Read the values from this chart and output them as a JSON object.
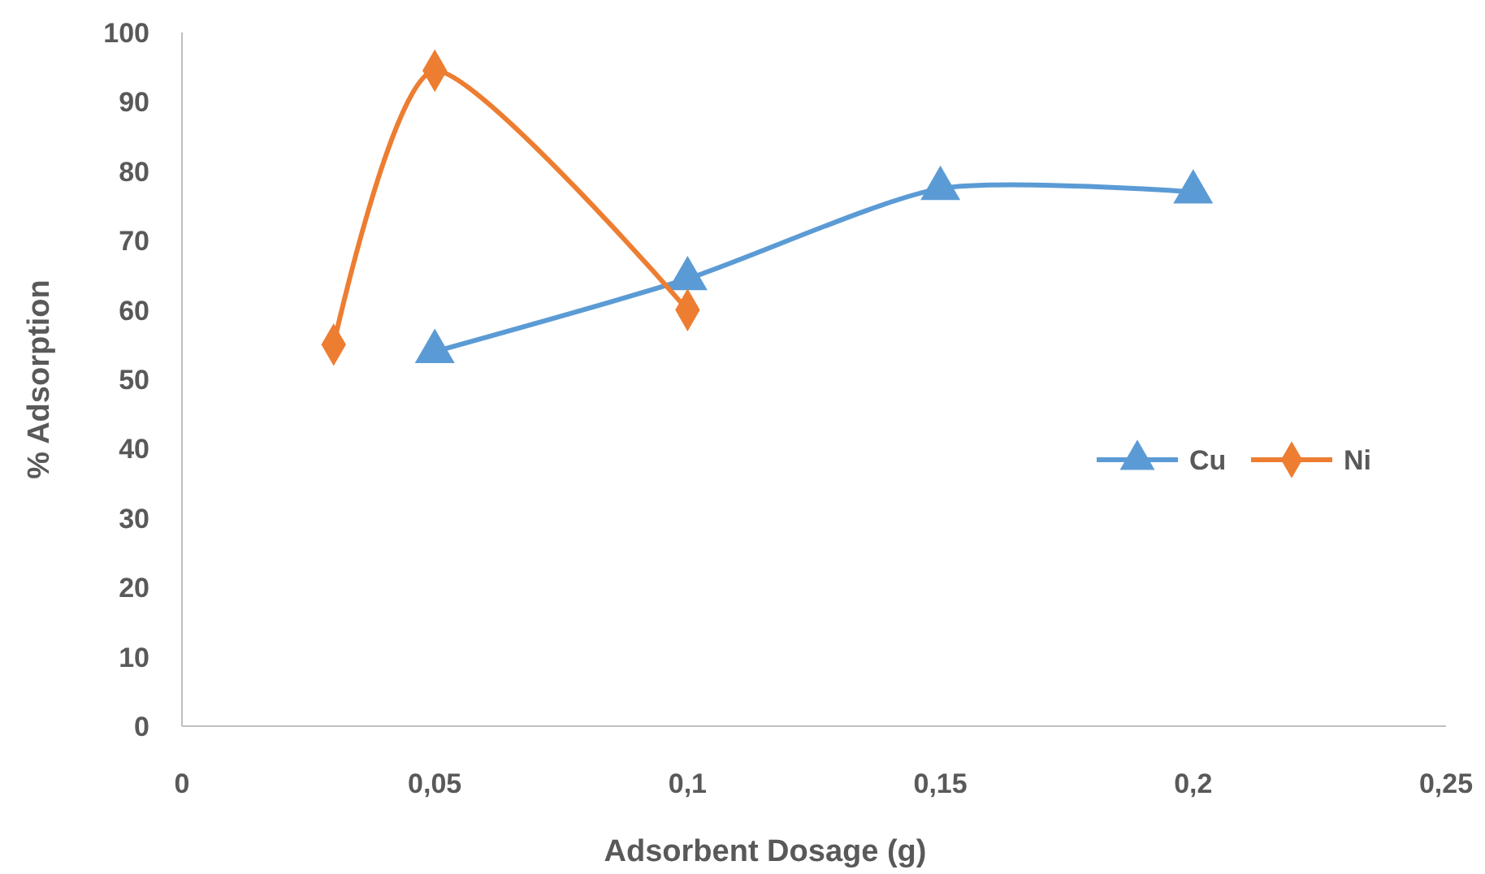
{
  "chart_data": {
    "type": "line",
    "xlabel": "Adsorbent Dosage (g)",
    "ylabel": "% Adsorption",
    "xlim": [
      0,
      0.25
    ],
    "xticks": [
      0,
      {
        "value": 0.05,
        "label": "0,05"
      },
      {
        "value": 0.1,
        "label": "0,1"
      },
      {
        "value": 0.15,
        "label": "0,15"
      },
      {
        "value": 0.2,
        "label": "0,2"
      },
      {
        "value": 0.25,
        "label": "0,25"
      }
    ],
    "ylim": [
      0,
      100
    ],
    "yticks": [
      0,
      10,
      20,
      30,
      40,
      50,
      60,
      70,
      80,
      90,
      100
    ],
    "grid": false,
    "legend": "right",
    "series": [
      {
        "name": "Cu",
        "color": "#5b9bd5",
        "marker": "triangle",
        "x": [
          0.05,
          0.1,
          0.15,
          0.2
        ],
        "values": [
          54,
          64.5,
          77.5,
          77
        ]
      },
      {
        "name": "Ni",
        "color": "#ed7d31",
        "marker": "diamond",
        "x": [
          0.03,
          0.05,
          0.1
        ],
        "values": [
          55,
          94.5,
          60
        ]
      }
    ]
  }
}
